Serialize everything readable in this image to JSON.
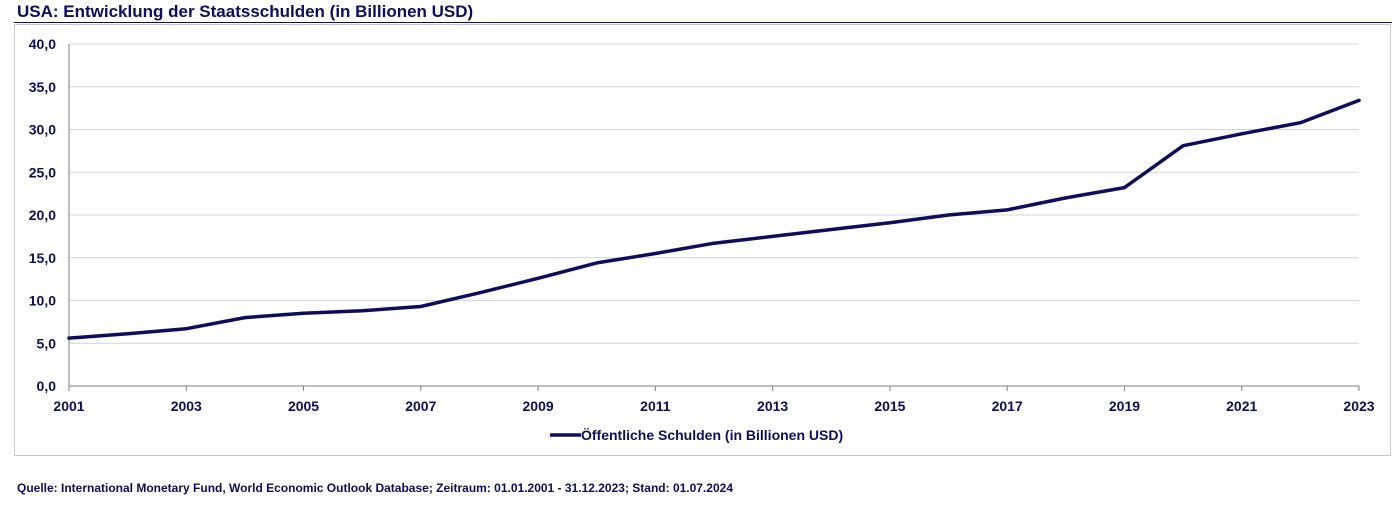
{
  "page": {
    "title": "USA: Entwicklung der Staatsschulden (in Billionen USD)",
    "source": "Quelle: International Monetary Fund, World Economic Outlook Database; Zeitraum: 01.01.2001 - 31.12.2023; Stand: 01.07.2024"
  },
  "colors": {
    "series": "#0d0d5c",
    "grid": "#d4d4d4",
    "axis": "#7f7f7f",
    "text": "#0d0d5c"
  },
  "chart_data": {
    "type": "line",
    "title": "USA: Entwicklung der Staatsschulden (in Billionen USD)",
    "xlabel": "",
    "ylabel": "",
    "x": [
      2001,
      2002,
      2003,
      2004,
      2005,
      2006,
      2007,
      2008,
      2009,
      2010,
      2011,
      2012,
      2013,
      2014,
      2015,
      2016,
      2017,
      2018,
      2019,
      2020,
      2021,
      2022,
      2023
    ],
    "x_tick_labels": [
      "2001",
      "2003",
      "2005",
      "2007",
      "2009",
      "2011",
      "2013",
      "2015",
      "2017",
      "2019",
      "2021",
      "2023"
    ],
    "y_ticks": [
      0,
      5,
      10,
      15,
      20,
      25,
      30,
      35,
      40
    ],
    "y_tick_labels": [
      "0,0",
      "5,0",
      "10,0",
      "15,0",
      "20,0",
      "25,0",
      "30,0",
      "35,0",
      "40,0"
    ],
    "ylim": [
      0,
      40
    ],
    "grid": true,
    "legend_position": "bottom-center",
    "series": [
      {
        "name": "Öffentliche Schulden (in Billionen USD)",
        "values": [
          5.6,
          6.1,
          6.7,
          8.0,
          8.5,
          8.8,
          9.3,
          10.9,
          12.6,
          14.4,
          15.5,
          16.7,
          17.5,
          18.3,
          19.1,
          20.0,
          20.6,
          22.0,
          23.2,
          28.1,
          29.5,
          30.8,
          33.4
        ]
      }
    ]
  }
}
